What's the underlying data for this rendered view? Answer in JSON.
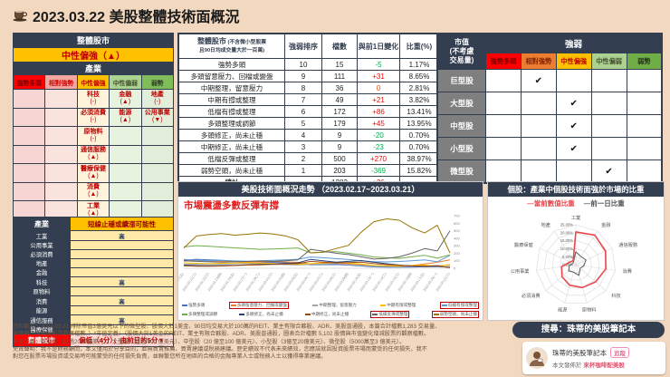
{
  "page": {
    "title": "2023.03.22 美股整體技術面概況"
  },
  "colors": {
    "page_bg": "#F2D8BE",
    "navy": "#333F50",
    "gold": "#FFC000",
    "alert_red": "#FF0000",
    "dark_red": "#C00000",
    "up_red": "#FF0000",
    "down_green": "#00B050",
    "current_line": "#E8474C",
    "prev_line": "#595959"
  },
  "industry_grid": {
    "market_header": "整體股市",
    "market_status": "中性偏強（▲）",
    "industry_header": "產業",
    "columns": [
      {
        "label": "強勢多頭",
        "header_bg": "#FF0000",
        "header_fg": "#7F0000",
        "cell_bg": "#F7D5D3"
      },
      {
        "label": "相對強勢",
        "header_bg": "#F1A7A0",
        "header_fg": "#D90000",
        "cell_bg": "#FAE2DD"
      },
      {
        "label": "中性偏強",
        "header_bg": "#FFC000",
        "header_fg": "#C00000",
        "cell_bg": "#FFF3DB"
      },
      {
        "label": "中性偏弱",
        "header_bg": "#ABD28E",
        "header_fg": "#44522F",
        "cell_bg": "#E7F2DF"
      },
      {
        "label": "弱勢",
        "header_bg": "#7FBD5B",
        "header_fg": "#2F3F23",
        "cell_bg": "#E2EEDA"
      }
    ],
    "rows": [
      [
        null,
        null,
        {
          "name": "科技",
          "mark": "(-)"
        },
        {
          "name": "金融",
          "mark": "(▲)"
        },
        {
          "name": "地產",
          "mark": "(-)"
        }
      ],
      [
        null,
        null,
        {
          "name": "必須消費",
          "mark": "(-)"
        },
        {
          "name": "能源",
          "mark": "(▲)"
        },
        {
          "name": "公用事業",
          "mark": "(▼)"
        }
      ],
      [
        null,
        null,
        {
          "name": "原物料",
          "mark": "(-)"
        },
        null,
        null
      ],
      [
        null,
        null,
        {
          "name": "通信服務",
          "mark": "(▲)"
        },
        null,
        null
      ],
      [
        null,
        null,
        {
          "name": "醫療保健",
          "mark": "(▲)"
        },
        null,
        null
      ],
      [
        null,
        null,
        {
          "name": "消費",
          "mark": "(▲)"
        },
        null,
        null
      ],
      [
        null,
        null,
        {
          "name": "工業",
          "mark": "(▲)"
        },
        null,
        null
      ]
    ]
  },
  "short_term": {
    "industry_header": "產業",
    "title": "短線止穩或續漲可能性",
    "rows": [
      {
        "label": "工業",
        "value": "高"
      },
      {
        "label": "公用事業",
        "value": ""
      },
      {
        "label": "必須消費",
        "value": ""
      },
      {
        "label": "地產",
        "value": ""
      },
      {
        "label": "金融",
        "value": ""
      },
      {
        "label": "科技",
        "value": "高"
      },
      {
        "label": "原物料",
        "value": ""
      },
      {
        "label": "消費",
        "value": "高"
      },
      {
        "label": "能源",
        "value": ""
      },
      {
        "label": "通信服務",
        "value": "高"
      },
      {
        "label": "醫療保健",
        "value": ""
      }
    ],
    "overall": {
      "label": "整體股市",
      "value": "偏低（4分）；由前日的5分▼"
    }
  },
  "breadth_table": {
    "header": {
      "main": "整體股市",
      "sub1": "(不含微小型股票",
      "sub2": "且90日均成交量大於一百萬)",
      "rank": "強弱排序",
      "count": "檔數",
      "change": "與前1日變化",
      "weight": "比重(%)"
    },
    "rows": [
      {
        "label": "強勢多頭",
        "rank": "10",
        "count": "15",
        "change": "-5",
        "weight": "1.17%"
      },
      {
        "label": "多頭留意壓力、回檔或變盤",
        "rank": "9",
        "count": "111",
        "change": "+31",
        "weight": "8.65%"
      },
      {
        "label": "中期整理，留意壓力",
        "rank": "8",
        "count": "36",
        "change": "0",
        "weight": "2.81%"
      },
      {
        "label": "中期有撐或整理",
        "rank": "7",
        "count": "49",
        "change": "+21",
        "weight": "3.82%"
      },
      {
        "label": "低檔有撐或整理",
        "rank": "6",
        "count": "172",
        "change": "+86",
        "weight": "13.41%"
      },
      {
        "label": "多頭整理或調節",
        "rank": "5",
        "count": "179",
        "change": "+45",
        "weight": "13.95%"
      },
      {
        "label": "多頭修正，尚未止穩",
        "rank": "4",
        "count": "9",
        "change": "-20",
        "weight": "0.70%"
      },
      {
        "label": "中期修正，尚未止穩",
        "rank": "3",
        "count": "9",
        "change": "-23",
        "weight": "0.70%"
      },
      {
        "label": "低檔反彈或整理",
        "rank": "2",
        "count": "500",
        "change": "+270",
        "weight": "38.97%"
      },
      {
        "label": "弱勢空頭，尚未止穩",
        "rank": "1",
        "count": "203",
        "change": "-369",
        "weight": "15.82%"
      }
    ],
    "total": {
      "label": "總計",
      "rank": "",
      "count": "1283",
      "change": "+36",
      "weight": ""
    }
  },
  "cap_matrix": {
    "corner_lines": [
      "市值",
      "(不考慮",
      "交易量)"
    ],
    "span_header": "強弱",
    "columns": [
      {
        "label": "強勢多頭",
        "bg": "#FF0000",
        "fg": "#7F0000"
      },
      {
        "label": "相對強勢",
        "bg": "#ED7D31",
        "fg": "#7F2000"
      },
      {
        "label": "中性偏強",
        "bg": "#FFC000",
        "fg": "#C00000"
      },
      {
        "label": "中性偏弱",
        "bg": "#ABD28E",
        "fg": "#44522F"
      },
      {
        "label": "弱勢",
        "bg": "#6FAE46",
        "fg": "#1F2F18"
      }
    ],
    "check_glyph": "✔",
    "rows": [
      {
        "label": "巨型股",
        "check": 1
      },
      {
        "label": "大型股",
        "check": 2
      },
      {
        "label": "中型股",
        "check": 2
      },
      {
        "label": "小型股",
        "check": 2
      },
      {
        "label": "微型股",
        "check": 3
      }
    ]
  },
  "trend_panel": {
    "title": "美股技術面概況走勢 （2023.02.17~2023.03.21）",
    "subtitle": "市場震盪多數反彈有撐"
  },
  "radar_panel": {
    "title": "個股：產業中個股技術面強於市場的比重",
    "legend_current": "—當前數值比重",
    "legend_prev": "—前一日比重"
  },
  "chart_data": [
    {
      "type": "line",
      "title": "美股技術面概況走勢（2023.02.17~2023.03.21）",
      "subtitle": "市場震盪多數反彈有撐",
      "x": [
        "2023.02.17(五)",
        "2023.02.21(二)",
        "2023.02.22(三)",
        "2023.02.23(四)",
        "2023.02.24(五)",
        "2023.02.27(一)",
        "2023.02.28(二)",
        "2023.03.01(三)",
        "2023.03.02(四)",
        "2023.03.03(五)",
        "2023.03.06(一)",
        "2023.03.07(二)",
        "2023.03.08(三)",
        "2023.03.09(四)",
        "2023.03.10(五)",
        "2023.03.13(一)",
        "2023.03.14(二)",
        "2023.03.15(三)",
        "2023.03.16(四)",
        "2023.03.17(五)",
        "2023.03.20(一)",
        "2023.03.21(二)"
      ],
      "ylim": [
        0,
        700
      ],
      "yticks": [
        0,
        100,
        200,
        300,
        400,
        500,
        600,
        700
      ],
      "legend_position": "bottom",
      "series": [
        {
          "name": "強勢多頭",
          "color": "#4472C4",
          "boxed": false,
          "values": [
            105,
            120,
            112,
            105,
            95,
            88,
            82,
            78,
            72,
            68,
            45,
            48,
            50,
            42,
            30,
            18,
            15,
            14,
            16,
            20,
            20,
            15
          ]
        },
        {
          "name": "多頭留意壓力、回檔或變盤",
          "color": "#ED7D31",
          "boxed": true,
          "values": [
            95,
            105,
            98,
            92,
            88,
            82,
            86,
            90,
            84,
            78,
            58,
            66,
            72,
            62,
            50,
            36,
            32,
            28,
            38,
            58,
            80,
            111
          ]
        },
        {
          "name": "中期整理，留意壓力",
          "color": "#A5A5A5",
          "boxed": false,
          "values": [
            58,
            54,
            50,
            55,
            60,
            64,
            60,
            54,
            48,
            44,
            50,
            56,
            60,
            48,
            38,
            28,
            24,
            20,
            26,
            32,
            36,
            36
          ]
        },
        {
          "name": "中期有撐或整理",
          "color": "#FFC000",
          "boxed": false,
          "values": [
            72,
            66,
            62,
            66,
            70,
            74,
            70,
            64,
            58,
            54,
            62,
            72,
            80,
            70,
            58,
            38,
            34,
            30,
            36,
            42,
            28,
            49
          ]
        },
        {
          "name": "低檔有撐或整理",
          "color": "#5B9BD5",
          "boxed": true,
          "values": [
            118,
            108,
            100,
            104,
            98,
            94,
            100,
            106,
            112,
            120,
            150,
            140,
            128,
            116,
            100,
            88,
            84,
            90,
            100,
            112,
            86,
            172
          ]
        },
        {
          "name": "多頭整理或調節",
          "color": "#70AD47",
          "boxed": false,
          "values": [
            285,
            300,
            292,
            282,
            272,
            262,
            252,
            256,
            262,
            270,
            205,
            215,
            222,
            200,
            180,
            150,
            140,
            132,
            152,
            172,
            134,
            179
          ]
        },
        {
          "name": "多頭修正，尚未止穩",
          "color": "#264478",
          "boxed": false,
          "values": [
            42,
            36,
            32,
            36,
            40,
            46,
            52,
            56,
            62,
            72,
            118,
            100,
            82,
            92,
            102,
            80,
            60,
            42,
            30,
            22,
            29,
            9
          ]
        },
        {
          "name": "中期修正，尚未止穩",
          "color": "#9E480E",
          "boxed": false,
          "values": [
            32,
            28,
            26,
            30,
            36,
            42,
            46,
            52,
            56,
            62,
            92,
            82,
            72,
            76,
            82,
            62,
            50,
            40,
            30,
            26,
            32,
            9
          ]
        },
        {
          "name": "低檔反彈或整理",
          "color": "#636363",
          "boxed": true,
          "values": [
            100,
            92,
            86,
            82,
            86,
            90,
            96,
            92,
            100,
            112,
            252,
            228,
            200,
            182,
            152,
            122,
            132,
            152,
            200,
            262,
            230,
            500
          ]
        },
        {
          "name": "弱勢空頭，尚未止穩",
          "color": "#997300",
          "boxed": true,
          "values": [
            270,
            430,
            450,
            462,
            440,
            452,
            470,
            458,
            432,
            380,
            205,
            215,
            262,
            305,
            480,
            620,
            658,
            640,
            540,
            470,
            572,
            203
          ]
        }
      ]
    },
    {
      "type": "radar",
      "title": "個股：產業中個股技術面強於市場的比重",
      "categories": [
        "工業",
        "金融",
        "通信服務",
        "消費",
        "科技",
        "原物料",
        "能源",
        "必須消費",
        "公用事業",
        "醫療保健",
        "地產"
      ],
      "rings": [
        0,
        5,
        10,
        15,
        20,
        25
      ],
      "ring_labels": [
        "0.00%",
        "5.00%",
        "10.00%",
        "15.00%",
        "20.00%",
        "25.00%"
      ],
      "series": [
        {
          "name": "當前數值比重",
          "color": "#E8474C",
          "values": [
            20.5,
            22,
            20.5,
            19,
            16.5,
            15,
            13.5,
            11.5,
            9,
            4,
            3
          ]
        },
        {
          "name": "前一日比重",
          "color": "#595959",
          "values": [
            8,
            6,
            7,
            5,
            3.5,
            7,
            5,
            6,
            4,
            2,
            2.5
          ]
        }
      ]
    }
  ],
  "footer": {
    "lines": [
      "資料截至：2023.03.21 排除市值3億美元以下的微型股、股價大於1美金、90日均交易大於100萬的REIT、業主有限合夥股、ADR、美股普通股，本篇合計檔數1,283 交易量、",
      "股價與市值增減股票觀察檔數。）*市值定義：（股價大於1美金的REIT、業主有限合夥股、ADR、美股普通股，圖表合計檔數 5,102 股價與市值變化增減股票的觀察檔數。",
      "市值定義：巨型股（超過2000億美元）、大型股（超過 100 億美元）、中型股（20 億至100 億美元）、小型股（3億至20億美元）、微型股（5000萬至3 億美元）。",
      "免責聲明：我不是財務顧問，本文僅用於分享目的，並無買賣推薦、買賣建議或稅務建議。歷史績效不代表未來績效，您應該就因投資股票市場而蒙受的任何損失，我不",
      "對您在股票市場投資或交易時可能蒙受的任何損失負責，並聯繫您所在地區的合格的金融專業人士或稅務人士以獲得專業建議。"
    ]
  },
  "promo": {
    "search_pill": "搜尋：珠蒂的美股筆記本",
    "account_name": "珠蒂的美股筆記本",
    "follow_button": "追蹤",
    "published_prefix": "本文發佈於 ",
    "published_site": "來杯咖啡配美股"
  }
}
